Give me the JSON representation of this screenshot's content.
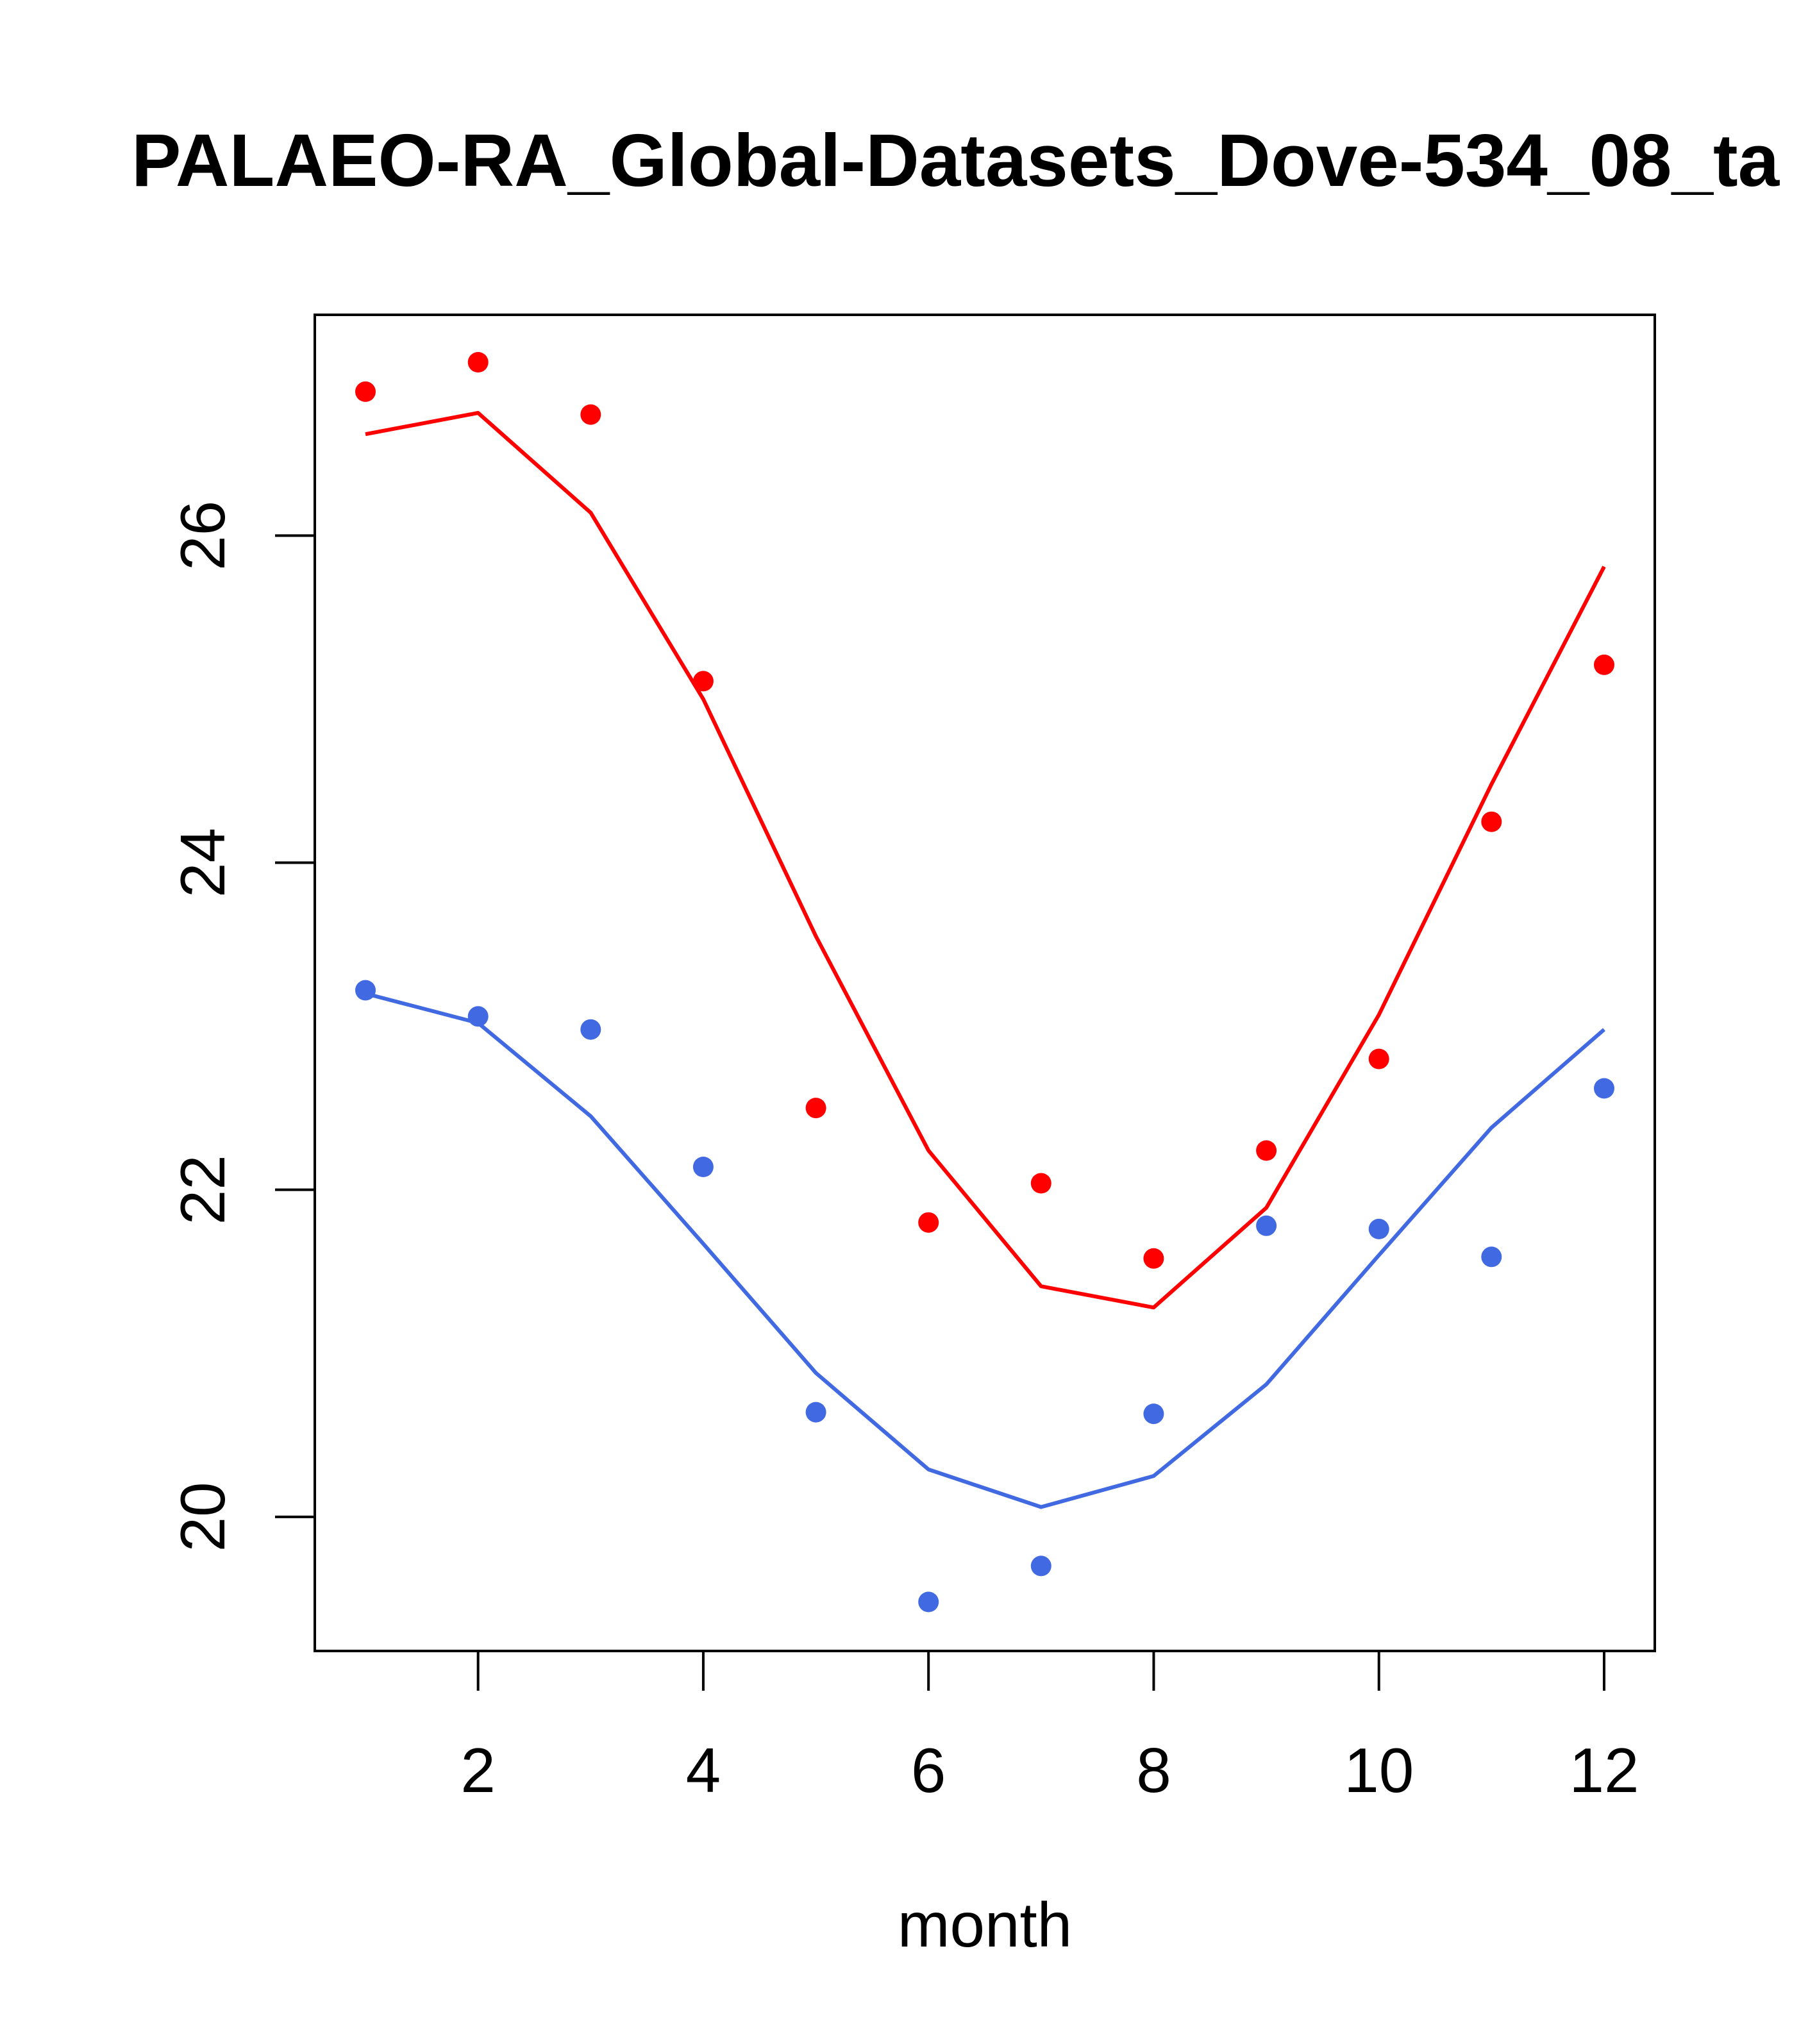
{
  "chart_data": {
    "type": "line",
    "title": "PALAEO-RA_Global-Datasets_Dove-534_08_ta",
    "xlabel": "month",
    "ylabel": "",
    "xlim": [
      0.55,
      12.45
    ],
    "ylim": [
      19.18,
      27.35
    ],
    "x_ticks": [
      2,
      4,
      6,
      8,
      10,
      12
    ],
    "x_tick_labels": [
      "2",
      "4",
      "6",
      "8",
      "10",
      "12"
    ],
    "y_ticks": [
      20,
      22,
      24,
      26
    ],
    "y_tick_labels": [
      "20",
      "22",
      "24",
      "26"
    ],
    "x": [
      1,
      2,
      3,
      4,
      5,
      6,
      7,
      8,
      9,
      10,
      11,
      12
    ],
    "series": [
      {
        "name": "red-line",
        "kind": "line",
        "color": "#ff0000",
        "values": [
          26.62,
          26.75,
          26.14,
          25.0,
          23.55,
          22.24,
          21.41,
          21.28,
          21.89,
          23.07,
          24.48,
          25.81
        ]
      },
      {
        "name": "red-points",
        "kind": "points",
        "color": "#ff0000",
        "values": [
          26.88,
          27.06,
          26.74,
          25.11,
          22.5,
          21.8,
          22.04,
          21.58,
          22.24,
          22.8,
          24.25,
          25.21
        ]
      },
      {
        "name": "blue-line",
        "kind": "line",
        "color": "#4169e1",
        "values": [
          23.2,
          23.02,
          22.45,
          21.67,
          20.88,
          20.29,
          20.06,
          20.25,
          20.81,
          21.6,
          22.38,
          22.98
        ]
      },
      {
        "name": "blue-points",
        "kind": "points",
        "color": "#4169e1",
        "values": [
          23.22,
          23.06,
          22.98,
          22.14,
          20.64,
          19.48,
          19.7,
          20.63,
          21.78,
          21.76,
          21.59,
          22.62
        ]
      }
    ]
  }
}
